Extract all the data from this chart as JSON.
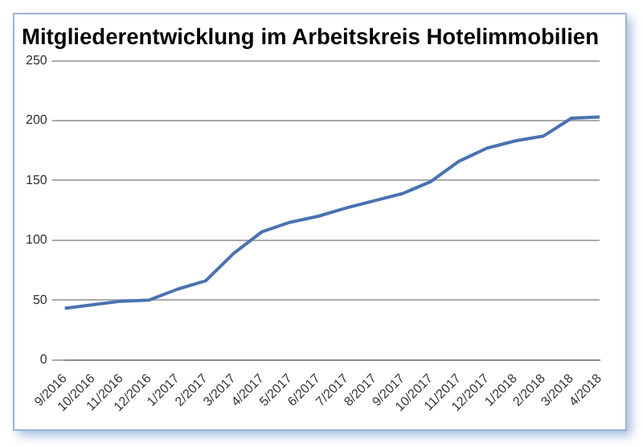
{
  "chart_data": {
    "type": "line",
    "title": "Mitgliederentwicklung im Arbeitskreis Hotelimmobilien",
    "categories": [
      "9/2016",
      "10/2016",
      "11/2016",
      "12/2016",
      "1/2017",
      "2/2017",
      "3/2017",
      "4/2017",
      "5/2017",
      "6/2017",
      "7/2017",
      "8/2017",
      "9/2017",
      "10/2017",
      "11/2017",
      "12/2017",
      "1/2018",
      "2/2018",
      "3/2018",
      "4/2018"
    ],
    "series": [
      {
        "color": "#4a72b0",
        "values": [
          43,
          46,
          49,
          50,
          59,
          66,
          89,
          107,
          115,
          120,
          127,
          133,
          139,
          149,
          166,
          177,
          183,
          187,
          202,
          203
        ]
      }
    ],
    "ylim": [
      0,
      250
    ],
    "yticks": [
      0,
      50,
      100,
      150,
      200,
      250
    ],
    "grid": "y",
    "legend": false,
    "marker": "none",
    "line_style": "solid"
  }
}
